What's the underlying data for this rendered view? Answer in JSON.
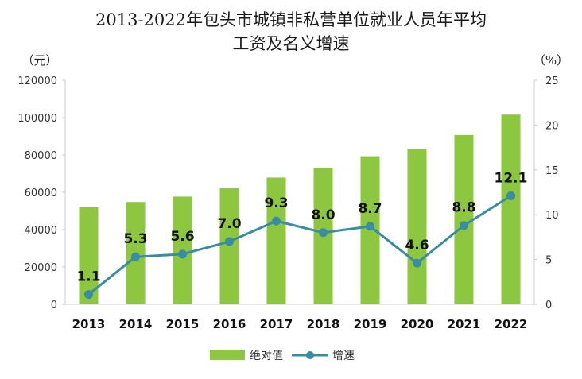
{
  "chart_data": {
    "type": "bar-line",
    "title_line1": "2013-2022年包头市城镇非私营单位就业人员年平均",
    "title_line2": "工资及名义增速",
    "left_unit": "（元）",
    "right_unit": "（%）",
    "categories": [
      "2013",
      "2014",
      "2015",
      "2016",
      "2017",
      "2018",
      "2019",
      "2020",
      "2021",
      "2022"
    ],
    "left_axis": {
      "min": 0,
      "max": 120000,
      "ticks": [
        "0",
        "20000",
        "40000",
        "60000",
        "80000",
        "100000",
        "120000"
      ]
    },
    "right_axis": {
      "min": 0,
      "max": 25,
      "ticks": [
        "0",
        "5",
        "10",
        "15",
        "20",
        "25"
      ]
    },
    "series": [
      {
        "name": "绝对值",
        "type": "bar",
        "axis": "left",
        "color": "#8dc63f",
        "values": [
          52000,
          54800,
          57700,
          62200,
          67900,
          73000,
          79300,
          83000,
          90700,
          101600
        ]
      },
      {
        "name": "增速",
        "type": "line",
        "axis": "right",
        "color": "#3a8ca0",
        "values": [
          1.1,
          5.3,
          5.6,
          7.0,
          9.3,
          8.0,
          8.7,
          4.6,
          8.8,
          12.1
        ],
        "labels": [
          "1.1",
          "5.3",
          "5.6",
          "7.0",
          "9.3",
          "8.0",
          "8.7",
          "4.6",
          "8.8",
          "12.1"
        ]
      }
    ],
    "legend_position": "bottom-center"
  }
}
